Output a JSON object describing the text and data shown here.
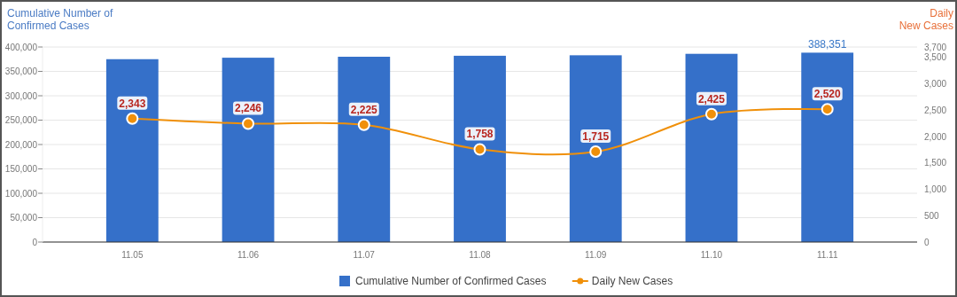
{
  "chart_data": {
    "type": "bar",
    "categories": [
      "11.05",
      "11.06",
      "11.07",
      "11.08",
      "11.09",
      "11.10",
      "11.11"
    ],
    "ylabel": "Cumulative Number of Confirmed Cases",
    "y2label": "Daily New Cases",
    "ylim": [
      0,
      400000
    ],
    "yticks": [
      {
        "value": 0,
        "label": "0"
      },
      {
        "value": 50000,
        "label": "50,000"
      },
      {
        "value": 100000,
        "label": "100,000"
      },
      {
        "value": 150000,
        "label": "150,000"
      },
      {
        "value": 200000,
        "label": "200,000"
      },
      {
        "value": 250000,
        "label": "250,000"
      },
      {
        "value": 300000,
        "label": "300,000"
      },
      {
        "value": 350000,
        "label": "350,000"
      },
      {
        "value": 400000,
        "label": "400,000"
      }
    ],
    "y2lim": [
      0,
      3700
    ],
    "y2ticks": [
      0,
      500,
      {
        "value": 1000,
        "label": "1,000"
      },
      {
        "value": 1500,
        "label": "1,500"
      },
      {
        "value": 2000,
        "label": "2,000"
      },
      {
        "value": 2500,
        "label": "2,500"
      },
      {
        "value": 3000,
        "label": "3,000"
      },
      {
        "value": 3500,
        "label": "3,500"
      },
      {
        "value": 3700,
        "label": "3,700"
      }
    ],
    "grid": "y",
    "legend": "bottom",
    "series": [
      {
        "name": "Cumulative Number of Confirmed Cases",
        "color": "#3570c9",
        "values": [
          375000,
          378000,
          380000,
          382000,
          383000,
          386000,
          388351
        ],
        "value_labels": [
          null,
          null,
          null,
          null,
          null,
          null,
          "388,351"
        ]
      },
      {
        "name": "Daily New Cases",
        "type": "line",
        "axis": "y2",
        "color": "#f0900a",
        "marker": "circle",
        "values": [
          2343,
          2246,
          2225,
          1758,
          1715,
          2425,
          2520
        ],
        "value_labels": [
          "2,343",
          "2,246",
          "2,225",
          "1,758",
          "1,715",
          "2,425",
          "2,520"
        ]
      }
    ]
  }
}
